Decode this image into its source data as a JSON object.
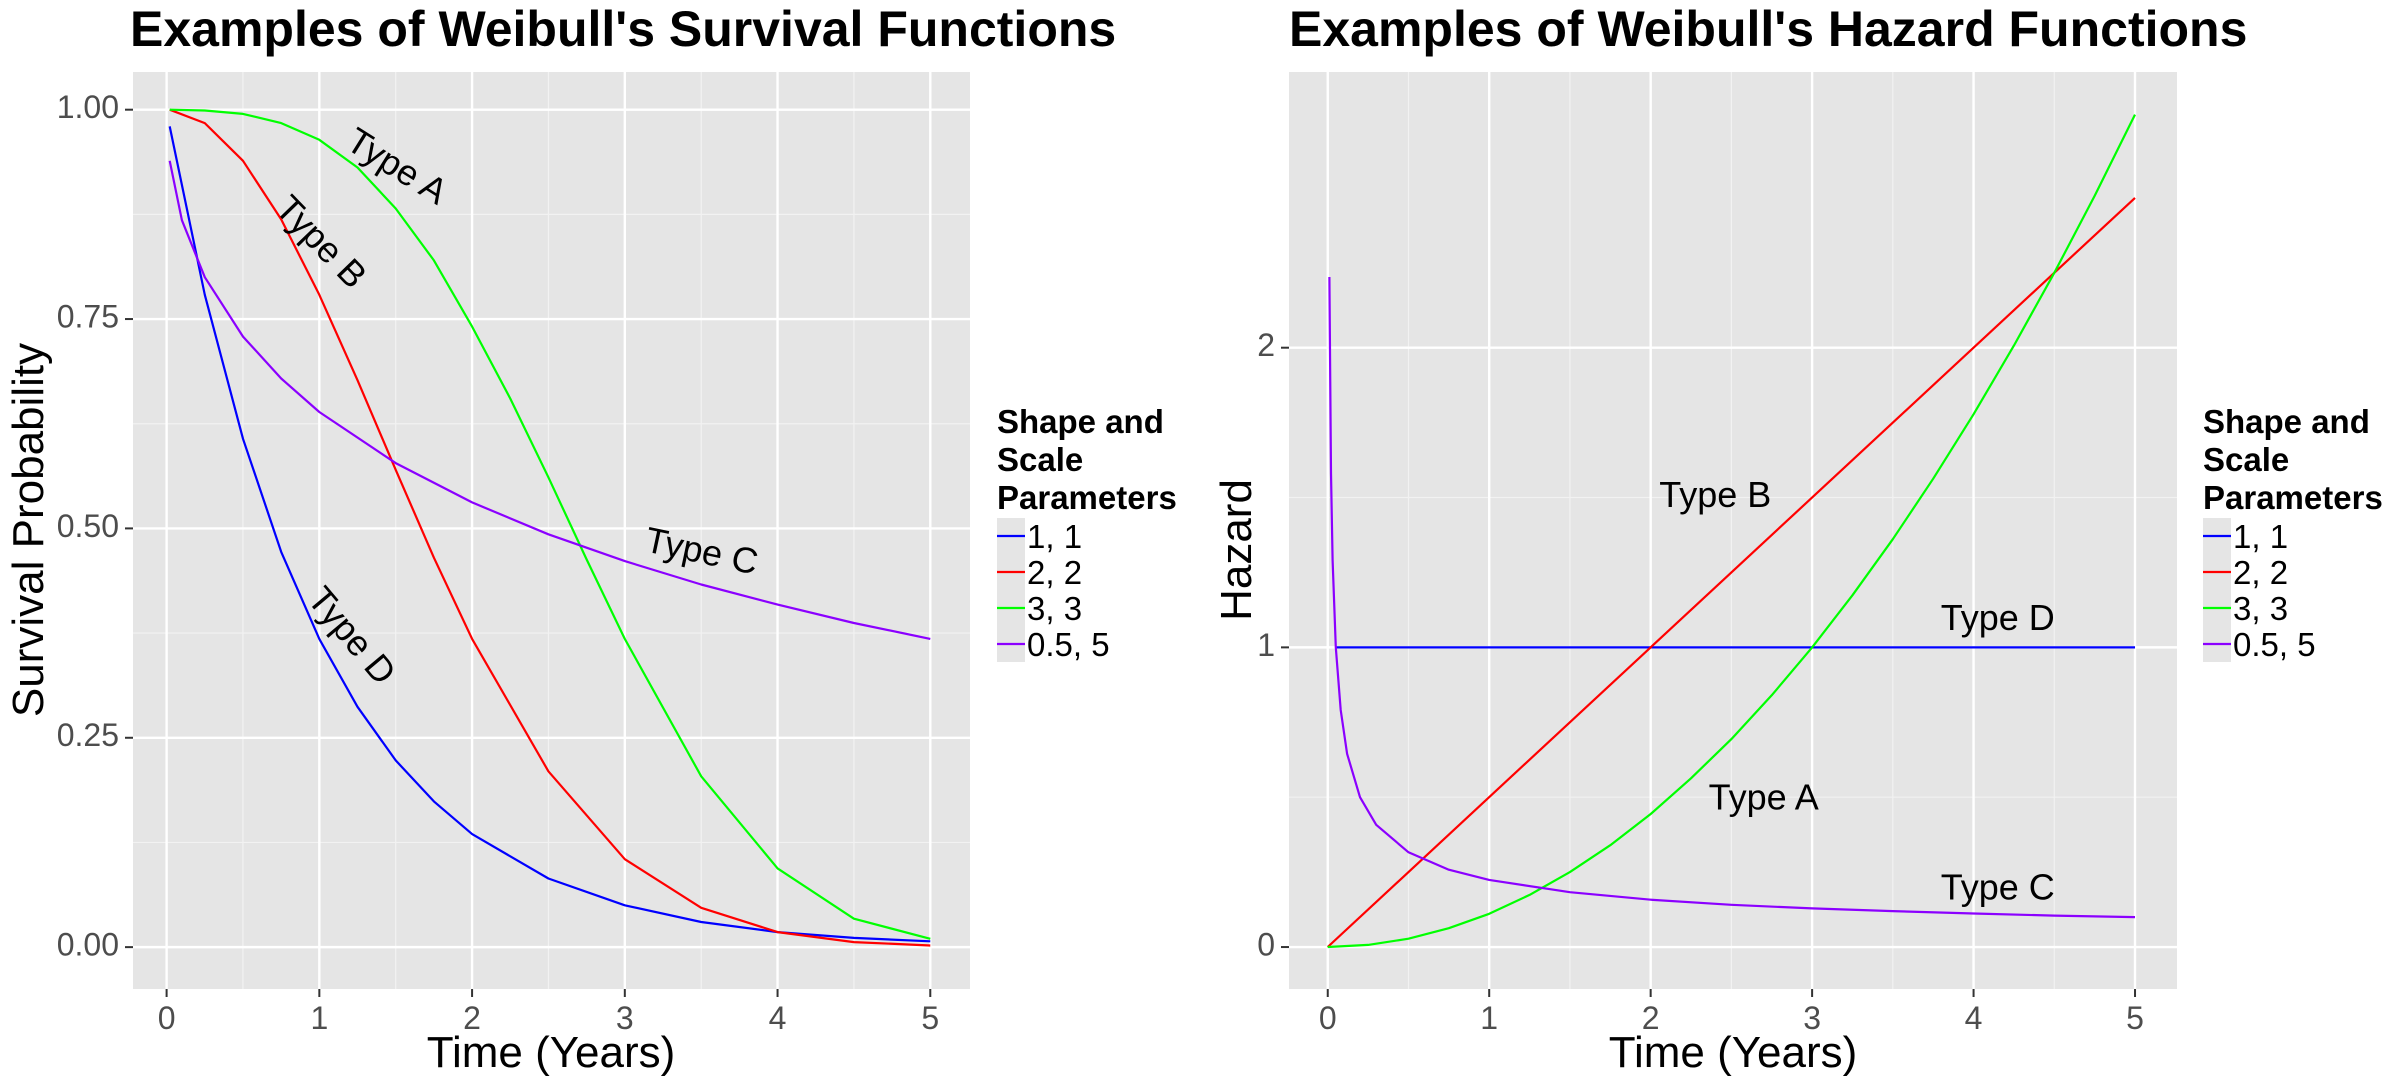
{
  "colors": {
    "panel": "#e5e5e5",
    "grid_major": "#ffffff",
    "grid_minor": "#f2f2f2",
    "tick_text": "#4d4d4d",
    "text": "#000000"
  },
  "legend": {
    "title_lines": [
      "Shape and",
      "Scale",
      "Parameters"
    ],
    "entries": [
      {
        "label": "1, 1",
        "color": "#0000ff"
      },
      {
        "label": "2, 2",
        "color": "#ff0000"
      },
      {
        "label": "3, 3",
        "color": "#00ff00"
      },
      {
        "label": "0.5, 5",
        "color": "#8b00ff"
      }
    ]
  },
  "chart_data": [
    {
      "type": "line",
      "title": "Examples of Weibull's Survival Functions",
      "xlabel": "Time (Years)",
      "ylabel": "Survival Probability",
      "xlim": [
        -0.22,
        5.26
      ],
      "ylim": [
        -0.05,
        1.045
      ],
      "x_ticks": [
        0,
        1,
        2,
        3,
        4,
        5
      ],
      "x_tick_labels": [
        "0",
        "1",
        "2",
        "3",
        "4",
        "5"
      ],
      "y_ticks": [
        0,
        0.25,
        0.5,
        0.75,
        1
      ],
      "y_tick_labels": [
        "0.00",
        "0.25",
        "0.50",
        "0.75",
        "1.00"
      ],
      "grid": true,
      "legend_position": "right",
      "series": [
        {
          "name": "1, 1",
          "color": "#0000ff",
          "x": [
            0.02,
            0.25,
            0.5,
            0.75,
            1,
            1.25,
            1.5,
            1.75,
            2,
            2.5,
            3,
            3.5,
            4,
            4.5,
            5
          ],
          "y": [
            0.98,
            0.779,
            0.607,
            0.472,
            0.368,
            0.287,
            0.223,
            0.174,
            0.135,
            0.082,
            0.05,
            0.03,
            0.018,
            0.011,
            0.007
          ]
        },
        {
          "name": "2, 2",
          "color": "#ff0000",
          "x": [
            0.02,
            0.25,
            0.5,
            0.75,
            1,
            1.25,
            1.5,
            1.75,
            2,
            2.5,
            3,
            3.5,
            4,
            4.5,
            5
          ],
          "y": [
            1.0,
            0.984,
            0.939,
            0.869,
            0.779,
            0.677,
            0.57,
            0.465,
            0.368,
            0.21,
            0.105,
            0.047,
            0.018,
            0.006,
            0.002
          ]
        },
        {
          "name": "3, 3",
          "color": "#00ff00",
          "x": [
            0.02,
            0.25,
            0.5,
            0.75,
            1,
            1.25,
            1.5,
            1.75,
            2,
            2.25,
            2.5,
            2.75,
            3,
            3.5,
            4,
            4.5,
            5
          ],
          "y": [
            1.0,
            0.999,
            0.995,
            0.984,
            0.964,
            0.931,
            0.882,
            0.82,
            0.741,
            0.655,
            0.561,
            0.463,
            0.368,
            0.204,
            0.094,
            0.034,
            0.01
          ]
        },
        {
          "name": "0.5, 5",
          "color": "#8b00ff",
          "x": [
            0.02,
            0.1,
            0.25,
            0.5,
            0.75,
            1,
            1.5,
            2,
            2.5,
            3,
            3.5,
            4,
            4.5,
            5
          ],
          "y": [
            0.939,
            0.868,
            0.8,
            0.729,
            0.679,
            0.639,
            0.578,
            0.531,
            0.493,
            0.461,
            0.433,
            0.409,
            0.387,
            0.368
          ]
        }
      ],
      "annotations": [
        {
          "text": "Type A",
          "x": 1.5,
          "y": 0.93,
          "angle": 32
        },
        {
          "text": "Type B",
          "x": 1.0,
          "y": 0.84,
          "angle": 46
        },
        {
          "text": "Type C",
          "x": 3.5,
          "y": 0.47,
          "angle": 12
        },
        {
          "text": "Type D",
          "x": 1.2,
          "y": 0.37,
          "angle": 50
        }
      ]
    },
    {
      "type": "line",
      "title": "Examples of Weibull's Hazard Functions",
      "xlabel": "Time (Years)",
      "ylabel": "Hazard",
      "xlim": [
        -0.24,
        5.26
      ],
      "ylim": [
        -0.14,
        2.92
      ],
      "x_ticks": [
        0,
        1,
        2,
        3,
        4,
        5
      ],
      "x_tick_labels": [
        "0",
        "1",
        "2",
        "3",
        "4",
        "5"
      ],
      "y_ticks": [
        0,
        1,
        2
      ],
      "y_tick_labels": [
        "0",
        "1",
        "2"
      ],
      "grid": true,
      "legend_position": "right",
      "series": [
        {
          "name": "1, 1",
          "color": "#0000ff",
          "x": [
            0.05,
            5
          ],
          "y": [
            1,
            1
          ]
        },
        {
          "name": "2, 2",
          "color": "#ff0000",
          "x": [
            0.0,
            5
          ],
          "y": [
            0.0,
            2.5
          ]
        },
        {
          "name": "3, 3",
          "color": "#00ff00",
          "x": [
            0.0,
            0.25,
            0.5,
            0.75,
            1,
            1.25,
            1.5,
            1.75,
            2,
            2.25,
            2.5,
            2.75,
            3,
            3.25,
            3.5,
            3.75,
            4,
            4.25,
            4.5,
            4.75,
            5
          ],
          "y": [
            0.0,
            0.007,
            0.028,
            0.063,
            0.111,
            0.174,
            0.25,
            0.34,
            0.444,
            0.563,
            0.694,
            0.84,
            1.0,
            1.174,
            1.361,
            1.563,
            1.778,
            2.007,
            2.25,
            2.507,
            2.778
          ]
        },
        {
          "name": "0.5, 5",
          "color": "#8b00ff",
          "x": [
            0.01,
            0.02,
            0.03,
            0.05,
            0.08,
            0.12,
            0.2,
            0.3,
            0.5,
            0.75,
            1,
            1.5,
            2,
            2.5,
            3,
            3.5,
            4,
            4.5,
            5
          ],
          "y": [
            2.236,
            1.581,
            1.291,
            1.0,
            0.791,
            0.645,
            0.5,
            0.408,
            0.316,
            0.258,
            0.224,
            0.183,
            0.158,
            0.141,
            0.129,
            0.12,
            0.112,
            0.105,
            0.1
          ]
        }
      ],
      "annotations": [
        {
          "text": "Type A",
          "x": 2.7,
          "y": 0.49,
          "angle": 0
        },
        {
          "text": "Type B",
          "x": 2.4,
          "y": 1.5,
          "angle": 0
        },
        {
          "text": "Type C",
          "x": 4.15,
          "y": 0.19,
          "angle": 0
        },
        {
          "text": "Type D",
          "x": 4.15,
          "y": 1.09,
          "angle": 0
        }
      ]
    }
  ]
}
